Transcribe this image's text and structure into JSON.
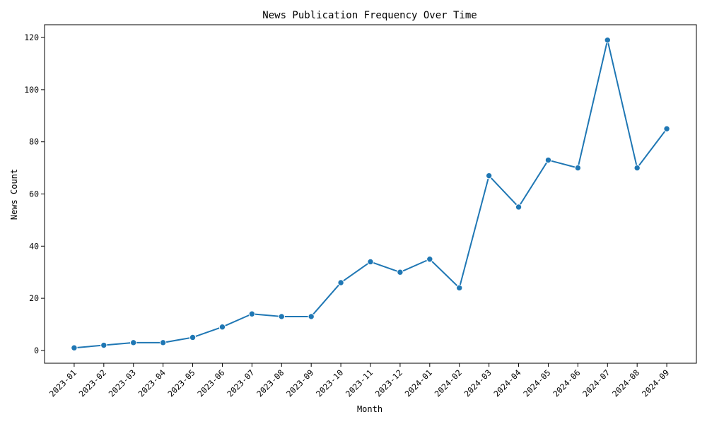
{
  "chart_data": {
    "type": "line",
    "title": "News Publication Frequency Over Time",
    "xlabel": "Month",
    "ylabel": "News Count",
    "categories": [
      "2023-01",
      "2023-02",
      "2023-03",
      "2023-04",
      "2023-05",
      "2023-06",
      "2023-07",
      "2023-08",
      "2023-09",
      "2023-10",
      "2023-11",
      "2023-12",
      "2024-01",
      "2024-02",
      "2024-03",
      "2024-04",
      "2024-05",
      "2024-06",
      "2024-07",
      "2024-08",
      "2024-09"
    ],
    "series": [
      {
        "values": [
          1,
          2,
          3,
          3,
          5,
          9,
          14,
          13,
          13,
          26,
          34,
          30,
          35,
          24,
          67,
          55,
          73,
          70,
          119,
          70,
          85
        ],
        "color": "#1f77b4",
        "marker": "circle"
      }
    ],
    "ylim": [
      -4.9,
      124.9
    ],
    "yticks": [
      0,
      20,
      40,
      60,
      80,
      100,
      120
    ],
    "grid": false,
    "legend": "none"
  }
}
